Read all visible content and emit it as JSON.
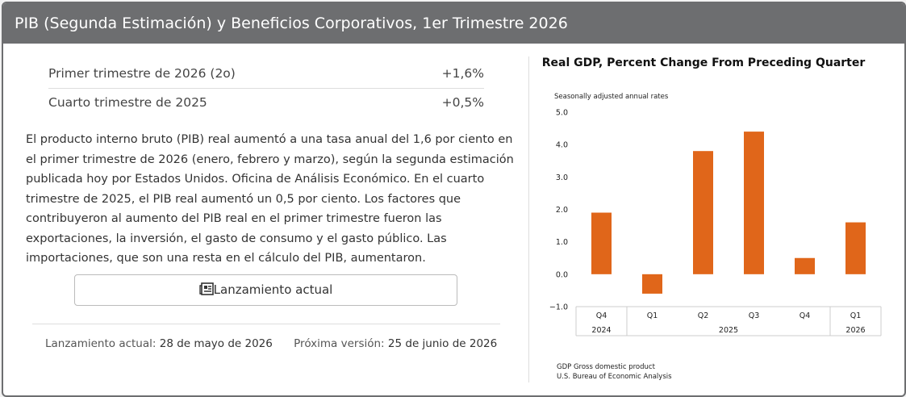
{
  "header": {
    "title": "PIB (Segunda Estimación) y Beneficios Corporativos, 1er Trimestre 2026"
  },
  "stats": [
    {
      "label": "Primer trimestre de 2026 (2o)",
      "value": "+1,6%"
    },
    {
      "label": "Cuarto trimestre de 2025",
      "value": "+0,5%"
    }
  ],
  "description": "El producto interno bruto (PIB) real aumentó a una tasa anual del 1,6 por ciento en el primer trimestre de 2026 (enero, febrero y marzo), según la segunda estimación publicada hoy por Estados Unidos. Oficina de Análisis Económico. En el cuarto trimestre de 2025, el PIB real aumentó un 0,5 por ciento. Los factores que contribuyeron al aumento del PIB real en el primer trimestre fueron las exportaciones, la inversión, el gasto de consumo y el gasto público. Las importaciones, que son una resta en el cálculo del PIB, aumentaron.",
  "button": {
    "label": "Lanzamiento actual"
  },
  "footer": {
    "current_label": "Lanzamiento actual:",
    "current_date": "28 de mayo de 2026",
    "next_label": "Próxima versión:",
    "next_date": "25 de junio de 2026"
  },
  "chart_data": {
    "type": "bar",
    "title": "Real GDP, Percent Change From Preceding Quarter",
    "subtitle": "Seasonally adjusted annual rates",
    "categories": [
      "Q4",
      "Q1",
      "Q2",
      "Q3",
      "Q4",
      "Q1"
    ],
    "year_groups": [
      "2024",
      "2025",
      "2026"
    ],
    "values": [
      1.9,
      -0.6,
      3.8,
      4.4,
      0.5,
      1.6
    ],
    "color": "#e0661a",
    "ylim": [
      -1,
      5
    ],
    "yticks": [
      {
        "value": -1,
        "label": "−1.0"
      },
      {
        "value": 0,
        "label": "0.0"
      },
      {
        "value": 1,
        "label": "1.0"
      },
      {
        "value": 2,
        "label": "2.0"
      },
      {
        "value": 3,
        "label": "3.0"
      },
      {
        "value": 4,
        "label": "4.0"
      },
      {
        "value": 5,
        "label": "5.0"
      }
    ],
    "notes": [
      "GDP Gross domestic product",
      "U.S. Bureau of Economic Analysis"
    ]
  }
}
